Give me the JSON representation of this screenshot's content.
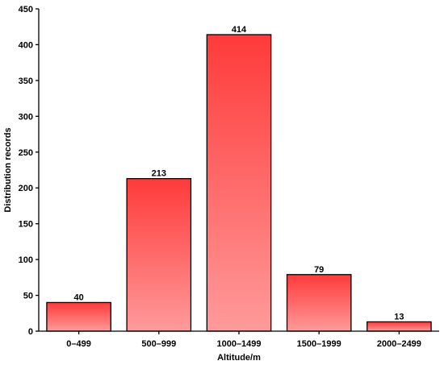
{
  "chart_data": {
    "type": "bar",
    "categories": [
      "0–499",
      "500–999",
      "1000–1499",
      "1500–1999",
      "2000–2499"
    ],
    "values": [
      40,
      213,
      414,
      79,
      13
    ],
    "xlabel": "Altitude/m",
    "ylabel": "Distribution records",
    "ylim": [
      0,
      450
    ],
    "yticks": [
      0,
      50,
      100,
      150,
      200,
      250,
      300,
      350,
      400,
      450
    ],
    "grid": false,
    "bar_color_top": "#ff3a3a",
    "bar_color_bottom": "#ff9a9a",
    "data_labels": true
  }
}
